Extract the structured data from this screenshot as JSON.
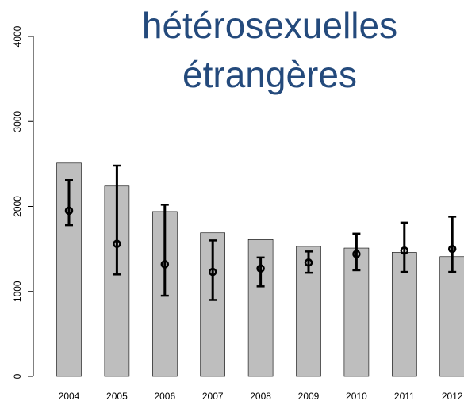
{
  "chart_data": {
    "type": "bar",
    "title_lines": [
      "hétérosexuelles",
      "étrangères"
    ],
    "categories": [
      "2004",
      "2005",
      "2006",
      "2007",
      "2008",
      "2009",
      "2010",
      "2011",
      "2012"
    ],
    "values": [
      2510,
      2240,
      1940,
      1690,
      1610,
      1530,
      1510,
      1460,
      1410
    ],
    "estimates": [
      1950,
      1560,
      1320,
      1230,
      1270,
      1340,
      1440,
      1480,
      1500
    ],
    "lower": [
      1780,
      1200,
      950,
      900,
      1060,
      1220,
      1250,
      1230,
      1230
    ],
    "upper": [
      2310,
      2480,
      2020,
      1600,
      1400,
      1470,
      1680,
      1810,
      1880
    ],
    "color": "#bebebe",
    "title_color": "#244a7c",
    "ylim": [
      0,
      4000
    ],
    "yticks": [
      0,
      1000,
      2000,
      3000,
      4000
    ]
  }
}
